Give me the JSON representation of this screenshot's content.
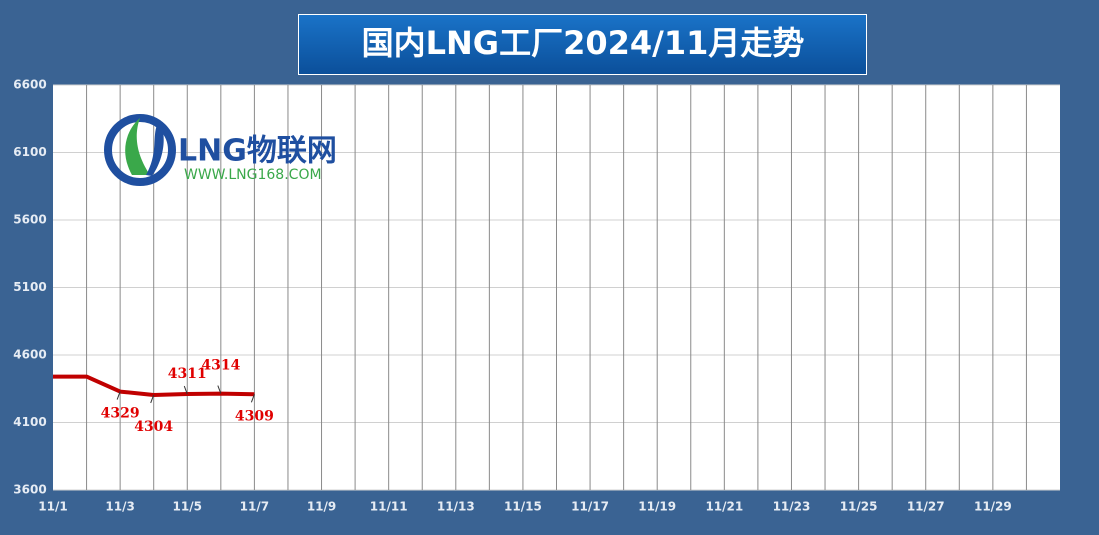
{
  "chart_data": {
    "type": "line",
    "title": "国内LNG工厂2024/11月走势",
    "logo": {
      "name": "LNG物联网",
      "url": "WWW.LNG168.COM"
    },
    "categories": [
      "11/1",
      null,
      "11/3",
      null,
      "11/5",
      null,
      "11/7",
      null,
      "11/9",
      null,
      "11/11",
      null,
      "11/13",
      null,
      "11/15",
      null,
      "11/17",
      null,
      "11/19",
      null,
      "11/21",
      null,
      "11/23",
      null,
      "11/25",
      null,
      "11/27",
      null,
      "11/29",
      null
    ],
    "series": [
      {
        "color": "#c00000",
        "values": [
          4440,
          4440,
          4329,
          4304,
          4311,
          4314,
          4309,
          null,
          null,
          null,
          null,
          null,
          null,
          null,
          null,
          null,
          null,
          null,
          null,
          null,
          null,
          null,
          null,
          null,
          null,
          null,
          null,
          null,
          null,
          null
        ],
        "value_labels": [
          null,
          null,
          "4329",
          "4304",
          "4311",
          "4314",
          "4309",
          null,
          null,
          null,
          null,
          null,
          null,
          null,
          null,
          null,
          null,
          null,
          null,
          null,
          null,
          null,
          null,
          null,
          null,
          null,
          null,
          null,
          null,
          null
        ]
      }
    ],
    "ylim": [
      3600,
      6600
    ],
    "yticks": [
      3600,
      4100,
      4600,
      5100,
      5600,
      6100,
      6600
    ],
    "grid": true
  }
}
